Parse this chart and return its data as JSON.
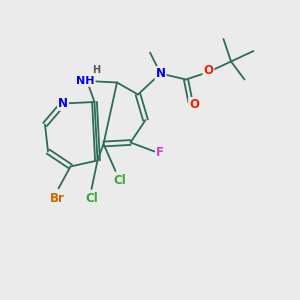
{
  "bg_color": "#ebebeb",
  "bond_color": "#2d6b5a",
  "atom_colors": {
    "N": "#0000ee",
    "O": "#ee2200",
    "Br": "#cc6600",
    "Cl": "#33aa33",
    "F": "#cc44cc",
    "C": "#2d6b5a"
  },
  "figsize": [
    3.0,
    3.0
  ],
  "dpi": 100
}
